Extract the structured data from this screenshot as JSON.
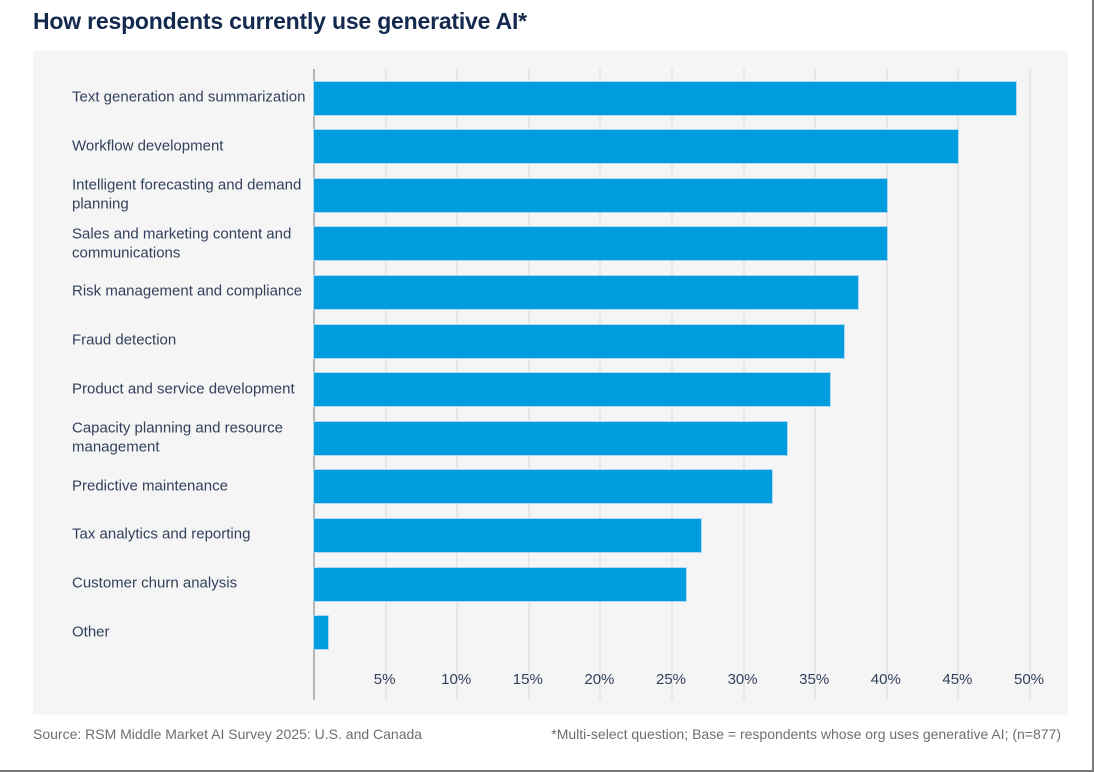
{
  "title": "How respondents currently use generative AI*",
  "footer": {
    "source": "Source: RSM Middle Market AI Survey 2025: U.S. and Canada",
    "note": "*Multi-select question; Base = respondents whose org uses generative AI; (n=877)"
  },
  "colors": {
    "bar": "#009CDE",
    "title_text": "#14294E",
    "label_text": "#33415C",
    "panel_background": "#F5F5F5",
    "gridline": "#E7E7E7",
    "axis_line": "#B5B5B5",
    "footer_text": "#6E6E6E",
    "border": "#7A7A7A"
  },
  "chart_data": {
    "type": "bar",
    "orientation": "horizontal",
    "title": "How respondents currently use generative AI*",
    "categories": [
      "Text generation and summarization",
      "Workflow development",
      "Intelligent forecasting and demand planning",
      "Sales and marketing content and communications",
      "Risk management and compliance",
      "Fraud detection",
      "Product and service development",
      "Capacity planning and resource management",
      "Predictive maintenance",
      "Tax analytics and reporting",
      "Customer churn analysis",
      "Other"
    ],
    "values": [
      49,
      45,
      40,
      40,
      38,
      37,
      36,
      33,
      32,
      27,
      26,
      1
    ],
    "unit": "%",
    "x_ticks": [
      "5%",
      "10%",
      "15%",
      "20%",
      "25%",
      "30%",
      "35%",
      "40%",
      "45%",
      "50%"
    ],
    "x_tick_step": 5,
    "xlim": [
      0,
      52
    ],
    "grid": true,
    "legend": false
  }
}
